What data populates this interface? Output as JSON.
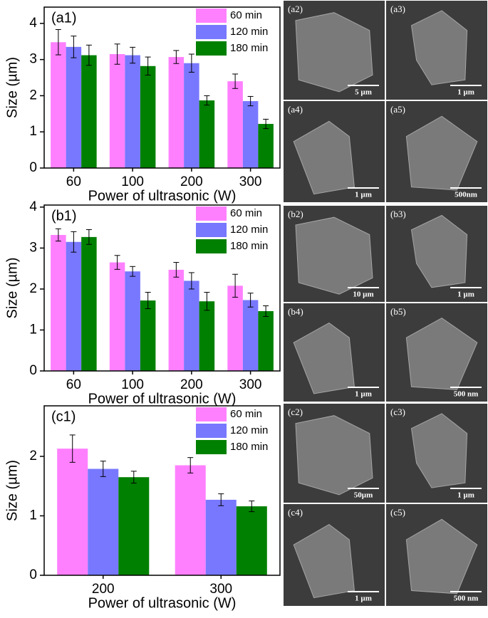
{
  "chart_data": [
    {
      "type": "bar",
      "label": "(a1)",
      "xlabel": "Power of ultrasonic (W)",
      "ylabel": "Size (µm)",
      "categories": [
        "60",
        "100",
        "200",
        "300"
      ],
      "series": [
        {
          "name": "60 min",
          "color": "#ff80ff",
          "values": [
            3.48,
            3.15,
            3.07,
            2.4
          ],
          "errors": [
            0.35,
            0.28,
            0.18,
            0.2
          ]
        },
        {
          "name": "120 min",
          "color": "#7878ff",
          "values": [
            3.35,
            3.12,
            2.9,
            1.85
          ],
          "errors": [
            0.3,
            0.22,
            0.25,
            0.13
          ]
        },
        {
          "name": "180 min",
          "color": "#008000",
          "values": [
            3.12,
            2.82,
            1.87,
            1.22
          ],
          "errors": [
            0.28,
            0.25,
            0.13,
            0.13
          ]
        }
      ],
      "ylim": [
        0,
        4.45
      ],
      "yticks": [
        0,
        1,
        2,
        3,
        4
      ],
      "legend": "upper right"
    },
    {
      "type": "bar",
      "label": "(b1)",
      "xlabel": "Power of ultrasonic (W)",
      "ylabel": "Size (µm)",
      "categories": [
        "60",
        "100",
        "200",
        "300"
      ],
      "series": [
        {
          "name": "60 min",
          "color": "#ff80ff",
          "values": [
            3.32,
            2.65,
            2.47,
            2.08
          ],
          "errors": [
            0.15,
            0.17,
            0.18,
            0.28
          ]
        },
        {
          "name": "120 min",
          "color": "#7878ff",
          "values": [
            3.15,
            2.43,
            2.2,
            1.73
          ],
          "errors": [
            0.25,
            0.12,
            0.2,
            0.17
          ]
        },
        {
          "name": "180 min",
          "color": "#008000",
          "values": [
            3.27,
            1.72,
            1.7,
            1.46
          ],
          "errors": [
            0.18,
            0.2,
            0.22,
            0.13
          ]
        }
      ],
      "ylim": [
        0,
        4.05
      ],
      "yticks": [
        0,
        1,
        2,
        3,
        4
      ],
      "legend": "upper right"
    },
    {
      "type": "bar",
      "label": "(c1)",
      "xlabel": "Power of ultrasonic (W)",
      "ylabel": "Size (µm)",
      "categories": [
        "200",
        "300"
      ],
      "series": [
        {
          "name": "60 min",
          "color": "#ff80ff",
          "values": [
            2.13,
            1.85
          ],
          "errors": [
            0.23,
            0.13
          ]
        },
        {
          "name": "120 min",
          "color": "#7878ff",
          "values": [
            1.79,
            1.27
          ],
          "errors": [
            0.13,
            0.1
          ]
        },
        {
          "name": "180 min",
          "color": "#008000",
          "values": [
            1.65,
            1.16
          ],
          "errors": [
            0.1,
            0.09
          ]
        }
      ],
      "ylim": [
        0,
        2.85
      ],
      "yticks": [
        0,
        1,
        2
      ],
      "legend": "upper right"
    }
  ],
  "images": [
    {
      "label": "(a2)",
      "scale": "5 µm"
    },
    {
      "label": "(a3)",
      "scale": "1 µm"
    },
    {
      "label": "(a4)",
      "scale": "1 µm"
    },
    {
      "label": "(a5)",
      "scale": "500nm"
    },
    {
      "label": "(b2)",
      "scale": "10 µm"
    },
    {
      "label": "(b3)",
      "scale": "1 µm"
    },
    {
      "label": "(b4)",
      "scale": "1 µm"
    },
    {
      "label": "(b5)",
      "scale": "500 nm"
    },
    {
      "label": "(c2)",
      "scale": "50µm"
    },
    {
      "label": "(c3)",
      "scale": "1 µm"
    },
    {
      "label": "(c4)",
      "scale": "1 µm"
    },
    {
      "label": "(c5)",
      "scale": "500 nm"
    }
  ]
}
